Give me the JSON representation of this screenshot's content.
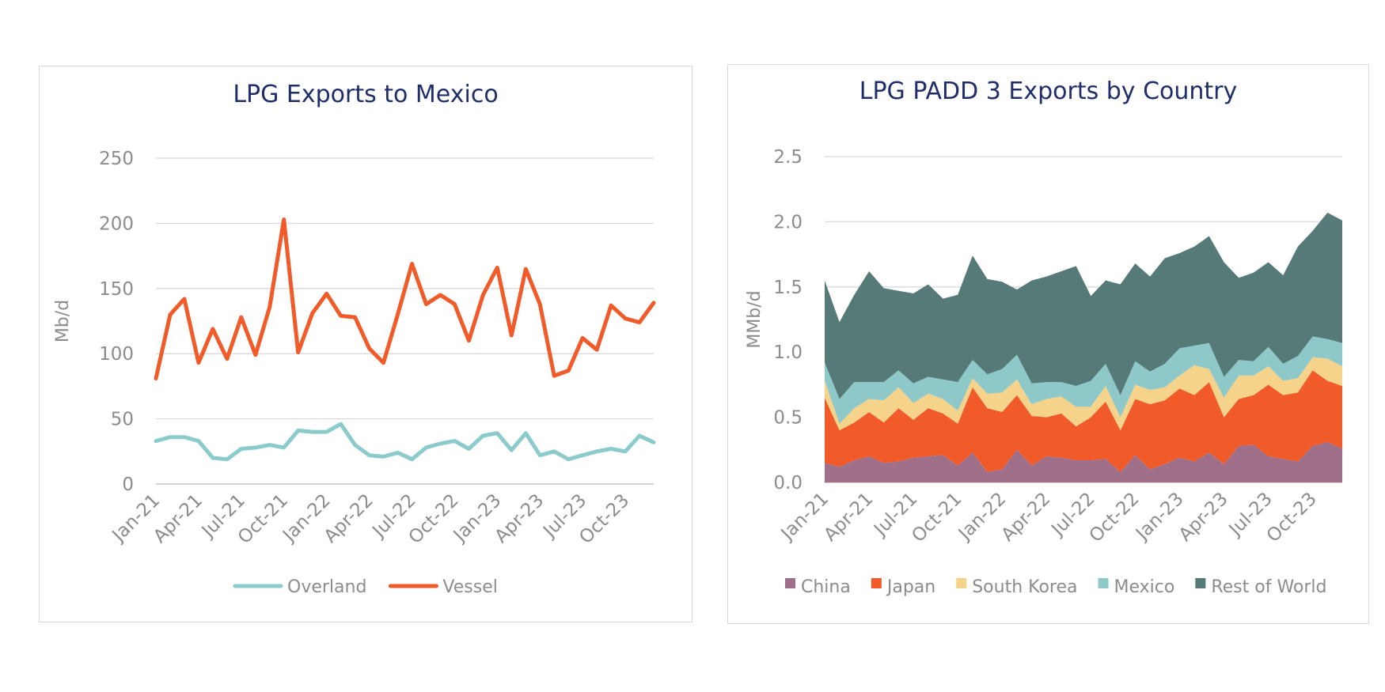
{
  "chart_data": [
    {
      "type": "line",
      "title": "LPG Exports to Mexico",
      "ylabel": "Mb/d",
      "xlabel": "",
      "ylim": [
        0,
        250
      ],
      "yticks": [
        0,
        50,
        100,
        150,
        200,
        250
      ],
      "xtick_labels": [
        "Jan-21",
        "Apr-21",
        "Jul-21",
        "Oct-21",
        "Jan-22",
        "Apr-22",
        "Jul-22",
        "Oct-22",
        "Jan-23",
        "Apr-23",
        "Jul-23",
        "Oct-23"
      ],
      "grid": true,
      "legend_position": "bottom",
      "x": [
        "Jan-21",
        "Feb-21",
        "Mar-21",
        "Apr-21",
        "May-21",
        "Jun-21",
        "Jul-21",
        "Aug-21",
        "Sep-21",
        "Oct-21",
        "Nov-21",
        "Dec-21",
        "Jan-22",
        "Feb-22",
        "Mar-22",
        "Apr-22",
        "May-22",
        "Jun-22",
        "Jul-22",
        "Aug-22",
        "Sep-22",
        "Oct-22",
        "Nov-22",
        "Dec-22",
        "Jan-23",
        "Feb-23",
        "Mar-23",
        "Apr-23",
        "May-23",
        "Jun-23",
        "Jul-23",
        "Aug-23",
        "Sep-23",
        "Oct-23",
        "Nov-23",
        "Dec-23"
      ],
      "series": [
        {
          "name": "Overland",
          "color": "#8ccbcb",
          "values": [
            33,
            36,
            36,
            33,
            20,
            19,
            27,
            28,
            30,
            28,
            41,
            40,
            40,
            46,
            30,
            22,
            21,
            24,
            19,
            28,
            31,
            33,
            27,
            37,
            39,
            26,
            39,
            22,
            25,
            19,
            22,
            25,
            27,
            25,
            37,
            32
          ]
        },
        {
          "name": "Vessel",
          "color": "#f15a29",
          "values": [
            81,
            130,
            142,
            93,
            119,
            96,
            128,
            99,
            136,
            203,
            101,
            131,
            146,
            129,
            128,
            104,
            93,
            130,
            169,
            138,
            145,
            138,
            110,
            145,
            166,
            114,
            165,
            138,
            83,
            87,
            112,
            103,
            137,
            127,
            124,
            139
          ]
        }
      ]
    },
    {
      "type": "area",
      "stacked": true,
      "title": "LPG PADD 3 Exports by Country",
      "ylabel": "MMb/d",
      "xlabel": "",
      "ylim": [
        0,
        2.5
      ],
      "yticks": [
        "0.0",
        "0.5",
        "1.0",
        "1.5",
        "2.0",
        "2.5"
      ],
      "xtick_labels": [
        "Jan-21",
        "Apr-21",
        "Jul-21",
        "Oct-21",
        "Jan-22",
        "Apr-22",
        "Jul-22",
        "Oct-22",
        "Jan-23",
        "Apr-23",
        "Jul-23",
        "Oct-23"
      ],
      "grid": true,
      "legend_position": "bottom",
      "x": [
        "Jan-21",
        "Feb-21",
        "Mar-21",
        "Apr-21",
        "May-21",
        "Jun-21",
        "Jul-21",
        "Aug-21",
        "Sep-21",
        "Oct-21",
        "Nov-21",
        "Dec-21",
        "Jan-22",
        "Feb-22",
        "Mar-22",
        "Apr-22",
        "May-22",
        "Jun-22",
        "Jul-22",
        "Aug-22",
        "Sep-22",
        "Oct-22",
        "Nov-22",
        "Dec-22",
        "Jan-23",
        "Feb-23",
        "Mar-23",
        "Apr-23",
        "May-23",
        "Jun-23",
        "Jul-23",
        "Aug-23",
        "Sep-23",
        "Oct-23",
        "Nov-23",
        "Dec-23"
      ],
      "series": [
        {
          "name": "China",
          "color": "#a0708b",
          "totals": [
            0.15,
            0.12,
            0.17,
            0.2,
            0.15,
            0.16,
            0.19,
            0.2,
            0.21,
            0.13,
            0.23,
            0.08,
            0.1,
            0.25,
            0.13,
            0.2,
            0.19,
            0.17,
            0.17,
            0.18,
            0.08,
            0.21,
            0.1,
            0.14,
            0.19,
            0.16,
            0.23,
            0.14,
            0.28,
            0.29,
            0.2,
            0.18,
            0.16,
            0.28,
            0.31,
            0.26
          ]
        },
        {
          "name": "Japan",
          "color": "#f15a29",
          "totals": [
            0.65,
            0.4,
            0.46,
            0.54,
            0.46,
            0.57,
            0.48,
            0.57,
            0.53,
            0.45,
            0.73,
            0.57,
            0.54,
            0.67,
            0.51,
            0.5,
            0.53,
            0.43,
            0.5,
            0.62,
            0.4,
            0.64,
            0.6,
            0.63,
            0.72,
            0.67,
            0.77,
            0.5,
            0.64,
            0.67,
            0.75,
            0.67,
            0.69,
            0.86,
            0.78,
            0.74
          ]
        },
        {
          "name": "South Korea",
          "color": "#f5d38a",
          "totals": [
            0.78,
            0.45,
            0.57,
            0.64,
            0.63,
            0.73,
            0.61,
            0.68,
            0.64,
            0.55,
            0.8,
            0.68,
            0.69,
            0.79,
            0.6,
            0.64,
            0.66,
            0.58,
            0.58,
            0.74,
            0.5,
            0.75,
            0.71,
            0.73,
            0.82,
            0.9,
            0.87,
            0.65,
            0.82,
            0.82,
            0.89,
            0.78,
            0.8,
            0.96,
            0.95,
            0.89
          ]
        },
        {
          "name": "Mexico",
          "color": "#8ec8c9",
          "totals": [
            0.92,
            0.64,
            0.77,
            0.77,
            0.77,
            0.86,
            0.76,
            0.81,
            0.79,
            0.77,
            0.94,
            0.83,
            0.87,
            0.98,
            0.76,
            0.77,
            0.77,
            0.74,
            0.78,
            0.91,
            0.67,
            0.93,
            0.85,
            0.91,
            1.03,
            1.05,
            1.07,
            0.81,
            0.94,
            0.93,
            1.04,
            0.91,
            0.97,
            1.12,
            1.1,
            1.07
          ]
        },
        {
          "name": "Rest of World",
          "color": "#557a78",
          "totals": [
            1.55,
            1.23,
            1.44,
            1.62,
            1.49,
            1.47,
            1.45,
            1.52,
            1.41,
            1.44,
            1.74,
            1.56,
            1.54,
            1.48,
            1.55,
            1.58,
            1.62,
            1.66,
            1.43,
            1.55,
            1.52,
            1.68,
            1.58,
            1.72,
            1.76,
            1.81,
            1.89,
            1.69,
            1.57,
            1.61,
            1.69,
            1.59,
            1.81,
            1.93,
            2.07,
            2.01
          ]
        }
      ]
    }
  ]
}
